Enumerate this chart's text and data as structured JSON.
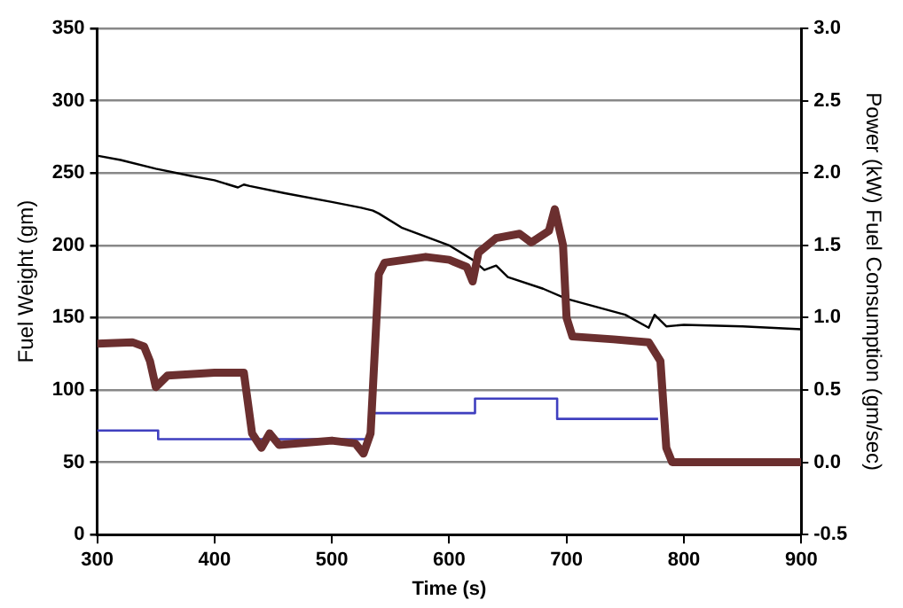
{
  "chart_data": {
    "type": "line",
    "xlabel": "Time (s)",
    "ylabel": "Fuel Weight (gm)",
    "y2label": "Power (kW) Fuel Consumption (gm/sec)",
    "xlim": [
      300,
      900
    ],
    "xticks": [
      300,
      400,
      500,
      600,
      700,
      800,
      900
    ],
    "ylim": [
      0,
      350
    ],
    "yticks": [
      0,
      50,
      100,
      150,
      200,
      250,
      300,
      350
    ],
    "y2lim": [
      -0.5,
      3.0
    ],
    "y2ticks": [
      {
        "value": -0.5,
        "label": "-0.5"
      },
      {
        "value": 0,
        "label": "0.0"
      },
      {
        "value": 0.5,
        "label": "0.5"
      },
      {
        "value": 1,
        "label": "1.0"
      },
      {
        "value": 1.5,
        "label": "1.5"
      },
      {
        "value": 2,
        "label": "2.0"
      },
      {
        "value": 2.5,
        "label": "2.5"
      },
      {
        "value": 3,
        "label": "3.0"
      }
    ],
    "grid": "y",
    "legend": false,
    "marker": "none",
    "series": [
      {
        "color": "#000000",
        "x": [
          300,
          320,
          350,
          380,
          400,
          420,
          425,
          430,
          460,
          500,
          525,
          535,
          540,
          560,
          600,
          620,
          630,
          640,
          650,
          680,
          700,
          750,
          770,
          775,
          785,
          800,
          850,
          900
        ],
        "values": [
          262,
          259,
          253,
          248,
          245,
          240,
          242,
          241,
          236,
          230,
          226,
          224,
          222,
          212,
          200,
          190,
          183,
          186,
          178,
          170,
          163,
          152,
          143,
          152,
          144,
          145,
          144,
          142
        ]
      },
      {
        "color": "#6b2f2f",
        "axis": "y2",
        "x": [
          300,
          330,
          340,
          345,
          350,
          360,
          400,
          425,
          432,
          440,
          447,
          455,
          500,
          520,
          527,
          533,
          540,
          545,
          580,
          600,
          615,
          620,
          625,
          640,
          660,
          670,
          685,
          690,
          697,
          700,
          705,
          740,
          770,
          780,
          785,
          790,
          900
        ],
        "values": [
          0.82,
          0.83,
          0.8,
          0.7,
          0.52,
          0.6,
          0.62,
          0.62,
          0.2,
          0.1,
          0.2,
          0.12,
          0.15,
          0.13,
          0.06,
          0.2,
          1.3,
          1.38,
          1.42,
          1.4,
          1.35,
          1.25,
          1.45,
          1.55,
          1.58,
          1.52,
          1.6,
          1.75,
          1.5,
          1.0,
          0.87,
          0.85,
          0.83,
          0.7,
          0.1,
          0,
          0
        ]
      },
      {
        "type": "step",
        "color": "#3f3fbf",
        "axis": "y2",
        "x": [
          300,
          352,
          532,
          622,
          692,
          778
        ],
        "values": [
          0.22,
          0.16,
          0.34,
          0.44,
          0.3,
          0.3
        ]
      }
    ]
  }
}
